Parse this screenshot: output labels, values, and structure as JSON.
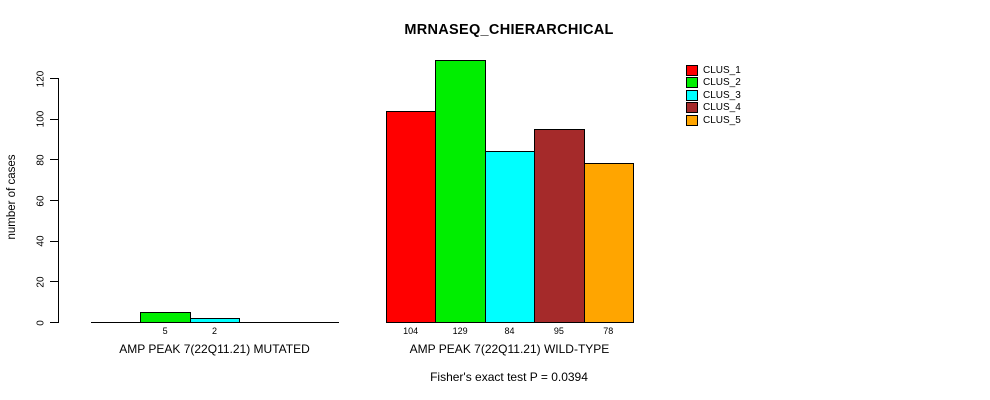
{
  "chart_data": {
    "type": "bar",
    "title": "MRNASEQ_CHIERARCHICAL",
    "ylabel": "number of cases",
    "xlabel": "",
    "ylim": [
      0,
      120
    ],
    "yticks": [
      0,
      20,
      40,
      60,
      80,
      100,
      120
    ],
    "grid": false,
    "legend_position": "top-right",
    "series": [
      {
        "name": "CLUS_1",
        "color": "#FF0000"
      },
      {
        "name": "CLUS_2",
        "color": "#00EE00"
      },
      {
        "name": "CLUS_3",
        "color": "#00FFFF"
      },
      {
        "name": "CLUS_4",
        "color": "#A52A2A"
      },
      {
        "name": "CLUS_5",
        "color": "#FFA500"
      }
    ],
    "groups": [
      {
        "label": "AMP PEAK 7(22Q11.21) MUTATED",
        "values": [
          0,
          5,
          2,
          0,
          0
        ]
      },
      {
        "label": "AMP PEAK 7(22Q11.21) WILD-TYPE",
        "values": [
          104,
          129,
          84,
          95,
          78
        ]
      }
    ],
    "bar_value_labels": {
      "group_0": [
        "5",
        "2"
      ],
      "group_1": [
        "104",
        "129",
        "84",
        "95",
        "78"
      ]
    },
    "annotation": "Fisher's exact test P = 0.0394"
  }
}
